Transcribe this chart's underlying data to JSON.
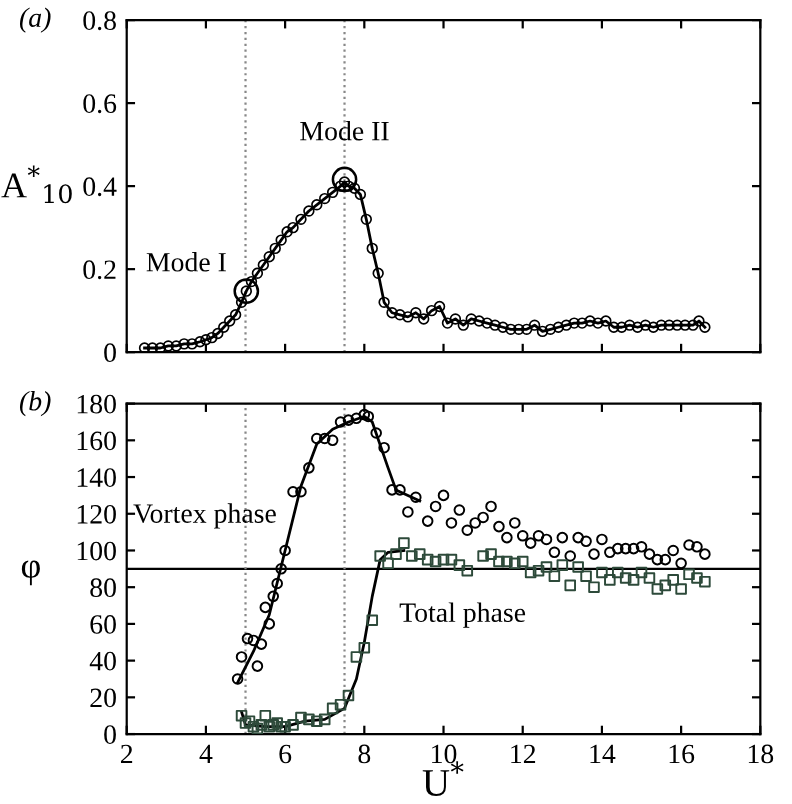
{
  "chart_data": [
    {
      "type": "scatter",
      "title": "(a)",
      "ylabel": "A$^{*}$$_{10}$",
      "xlim": [
        2,
        18
      ],
      "ylim": [
        0,
        0.8
      ],
      "xticks": [
        2,
        4,
        6,
        8,
        10,
        12,
        14,
        16,
        18
      ],
      "yticks": [
        0,
        0.2,
        0.4,
        0.6,
        0.8
      ],
      "tick_labels": "y",
      "grid": false,
      "legend": false,
      "series": [
        {
          "type": "line",
          "color": "#000000",
          "marker": "circle",
          "x": [
            2.45,
            2.65,
            2.85,
            3.05,
            3.25,
            3.45,
            3.65,
            3.85,
            4.0,
            4.15,
            4.3,
            4.45,
            4.6,
            4.75,
            4.9,
            5.02,
            5.15,
            5.3,
            5.45,
            5.6,
            5.75,
            5.9,
            6.05,
            6.2,
            6.4,
            6.6,
            6.8,
            7.0,
            7.2,
            7.4,
            7.5,
            7.6,
            7.75,
            7.9,
            8.05,
            8.2,
            8.35,
            8.5,
            8.7,
            8.9,
            9.1,
            9.3,
            9.5,
            9.7,
            9.9,
            10.1,
            10.3,
            10.5,
            10.7,
            10.9,
            11.1,
            11.3,
            11.5,
            11.7,
            11.9,
            12.1,
            12.3,
            12.5,
            12.7,
            12.9,
            13.1,
            13.3,
            13.5,
            13.7,
            13.9,
            14.1,
            14.3,
            14.5,
            14.7,
            14.9,
            15.1,
            15.3,
            15.5,
            15.7,
            15.9,
            16.1,
            16.3,
            16.45,
            16.6
          ],
          "values": [
            0.01,
            0.01,
            0.01,
            0.015,
            0.015,
            0.02,
            0.02,
            0.025,
            0.03,
            0.035,
            0.045,
            0.06,
            0.075,
            0.09,
            0.12,
            0.147,
            0.17,
            0.19,
            0.21,
            0.23,
            0.25,
            0.27,
            0.29,
            0.3,
            0.32,
            0.34,
            0.355,
            0.37,
            0.385,
            0.4,
            0.41,
            0.4,
            0.395,
            0.38,
            0.32,
            0.25,
            0.19,
            0.12,
            0.095,
            0.09,
            0.085,
            0.095,
            0.08,
            0.1,
            0.11,
            0.07,
            0.08,
            0.065,
            0.08,
            0.075,
            0.07,
            0.065,
            0.06,
            0.055,
            0.055,
            0.055,
            0.065,
            0.05,
            0.055,
            0.06,
            0.065,
            0.07,
            0.07,
            0.075,
            0.07,
            0.075,
            0.06,
            0.06,
            0.065,
            0.06,
            0.065,
            0.06,
            0.065,
            0.065,
            0.065,
            0.065,
            0.065,
            0.075,
            0.06
          ]
        },
        {
          "color": "#000000",
          "marker": "circle",
          "x": [
            5.02,
            7.5
          ],
          "values": [
            0.147,
            0.416
          ]
        }
      ],
      "annotations": [
        {
          "text": "Mode I",
          "x": 5.02,
          "y": 0.147
        },
        {
          "text": "Mode II",
          "x": 7.5,
          "y": 0.416
        }
      ],
      "ref_lines": [
        {
          "axis": "x",
          "value": 5.0,
          "color": "#888888",
          "line_style": "dotted"
        },
        {
          "axis": "x",
          "value": 7.5,
          "color": "#888888",
          "line_style": "dotted"
        }
      ]
    },
    {
      "type": "scatter",
      "title": "(b)",
      "ylabel": "φ",
      "xlabel": "U$^{*}$",
      "xlim": [
        2,
        18
      ],
      "ylim": [
        0,
        180
      ],
      "xticks": [
        2,
        4,
        6,
        8,
        10,
        12,
        14,
        16,
        18
      ],
      "yticks": [
        0,
        20,
        40,
        60,
        80,
        100,
        120,
        140,
        160,
        180
      ],
      "grid": false,
      "legend": false,
      "series": [
        {
          "color": "#000000",
          "marker": "circle",
          "x": [
            4.8,
            4.9,
            5.05,
            5.2,
            5.3,
            5.4,
            5.5,
            5.6,
            5.7,
            5.8,
            5.9,
            6.0,
            6.2,
            6.4,
            6.6,
            6.8,
            7.0,
            7.2,
            7.4,
            7.6,
            7.8,
            8.0,
            8.1,
            8.3,
            8.5,
            8.7,
            8.9,
            9.1,
            9.3,
            9.6,
            9.8,
            10.0,
            10.2,
            10.4,
            10.6,
            10.8,
            11.0,
            11.2,
            11.4,
            11.6,
            11.8,
            12.0,
            12.2,
            12.4,
            12.6,
            12.8,
            13.0,
            13.2,
            13.4,
            13.6,
            13.8,
            14.0,
            14.2,
            14.4,
            14.6,
            14.8,
            15.0,
            15.2,
            15.4,
            15.6,
            15.8,
            16.0,
            16.2,
            16.4,
            16.6
          ],
          "values": [
            30,
            42,
            52,
            51,
            37,
            49,
            69,
            60,
            75,
            82,
            90,
            100,
            132,
            132,
            145,
            161,
            161,
            160,
            170,
            171,
            172,
            174,
            173,
            164,
            156,
            133,
            133,
            121,
            129,
            116,
            124,
            130,
            115,
            122,
            111,
            115,
            118,
            124,
            113,
            107,
            115,
            108,
            104,
            108,
            106,
            99,
            107,
            97,
            107,
            105,
            98,
            106,
            99,
            101,
            101,
            101,
            102,
            98,
            95,
            95,
            100,
            93,
            103,
            102,
            98
          ]
        },
        {
          "type": "line",
          "color": "#000000",
          "x": [
            4.8,
            5.2,
            5.6,
            6.0,
            6.4,
            6.8,
            7.2,
            7.6,
            8.0,
            8.2,
            8.6,
            8.8,
            9.4
          ],
          "values": [
            28,
            45,
            65,
            100,
            135,
            158,
            166,
            170,
            173,
            170,
            145,
            133,
            127
          ]
        },
        {
          "color": "#2d4a3a",
          "marker": "square",
          "x": [
            4.9,
            5.0,
            5.1,
            5.2,
            5.3,
            5.4,
            5.5,
            5.6,
            5.7,
            5.8,
            5.9,
            6.0,
            6.2,
            6.4,
            6.6,
            6.8,
            7.0,
            7.2,
            7.4,
            7.6,
            7.8,
            8.0,
            8.2,
            8.4,
            8.6,
            8.8,
            9.0,
            9.2,
            9.4,
            9.6,
            9.8,
            10.0,
            10.2,
            10.4,
            10.6,
            11.0,
            11.2,
            11.4,
            11.6,
            11.8,
            12.0,
            12.2,
            12.4,
            12.6,
            12.8,
            13.0,
            13.2,
            13.4,
            13.6,
            13.8,
            14.0,
            14.2,
            14.4,
            14.6,
            14.8,
            15.0,
            15.2,
            15.4,
            15.6,
            15.8,
            16.0,
            16.2,
            16.4,
            16.6
          ],
          "values": [
            10,
            6,
            7,
            4,
            3,
            5,
            10,
            4,
            5,
            6,
            4,
            4,
            5,
            9,
            8,
            7,
            8,
            14,
            16,
            21,
            42,
            47,
            62,
            97,
            93,
            98,
            104,
            97,
            98,
            95,
            94,
            95,
            95,
            92,
            89,
            97,
            98,
            94,
            94,
            93,
            94,
            88,
            89,
            91,
            86,
            92,
            81,
            91,
            86,
            80,
            88,
            84,
            88,
            85,
            84,
            88,
            85,
            79,
            81,
            84,
            79,
            87,
            85,
            83
          ]
        },
        {
          "type": "line",
          "color": "#000000",
          "x": [
            4.9,
            5.0,
            5.5,
            6.0,
            6.5,
            7.0,
            7.5,
            7.8,
            8.0,
            8.2,
            8.4,
            8.6,
            9.0
          ],
          "values": [
            12,
            5,
            4,
            4,
            7,
            8,
            14,
            30,
            50,
            75,
            95,
            99,
            100
          ]
        }
      ],
      "annotations": [
        "Vortex phase",
        "Total phase"
      ],
      "ref_lines": [
        {
          "axis": "y",
          "value": 90,
          "color": "#000000",
          "line_style": "solid"
        },
        {
          "axis": "x",
          "value": 5.0,
          "color": "#888888",
          "line_style": "dotted"
        },
        {
          "axis": "x",
          "value": 7.5,
          "color": "#888888",
          "line_style": "dotted"
        }
      ]
    }
  ]
}
